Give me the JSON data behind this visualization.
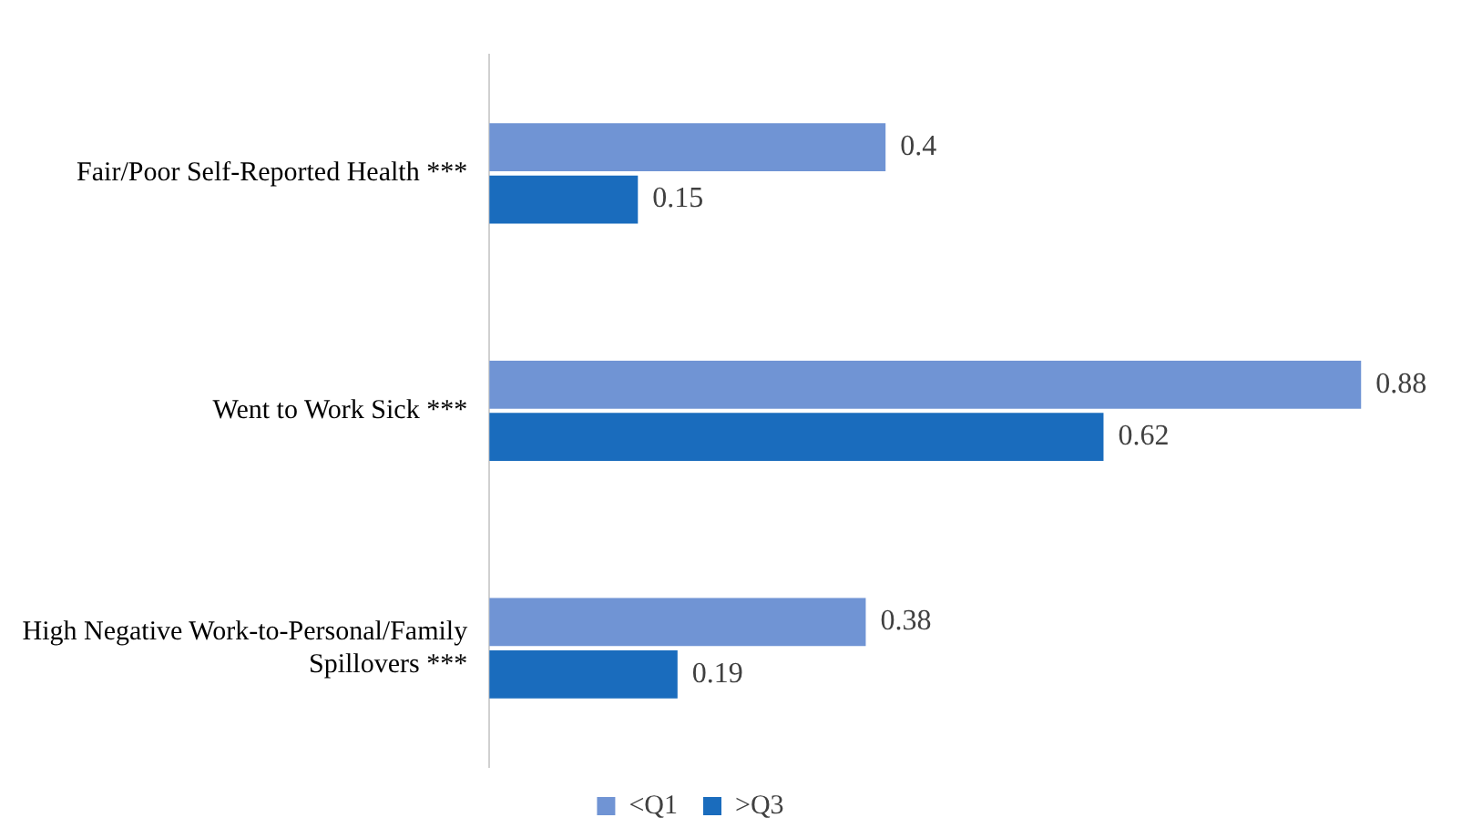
{
  "chart_data": {
    "type": "bar",
    "orientation": "horizontal",
    "categories": [
      "Fair/Poor Self-Reported Health ***",
      "Went to Work Sick ***",
      "High Negative Work-to-Personal/Family Spillovers ***"
    ],
    "series": [
      {
        "name": "<Q1",
        "color": "#7094d4",
        "values": [
          0.4,
          0.88,
          0.38
        ]
      },
      {
        "name": ">Q3",
        "color": "#1a6cbd",
        "values": [
          0.15,
          0.62,
          0.19
        ]
      }
    ],
    "data_labels": true,
    "legend": "bottom",
    "grid": false
  }
}
